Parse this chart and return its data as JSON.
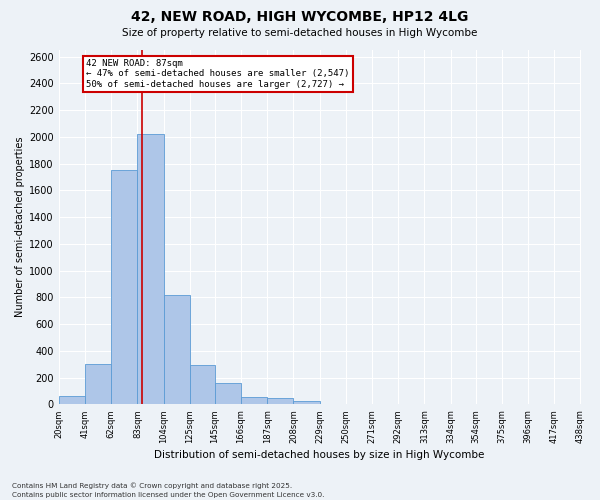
{
  "title": "42, NEW ROAD, HIGH WYCOMBE, HP12 4LG",
  "subtitle": "Size of property relative to semi-detached houses in High Wycombe",
  "xlabel": "Distribution of semi-detached houses by size in High Wycombe",
  "ylabel": "Number of semi-detached properties",
  "property_size": 87,
  "property_label": "42 NEW ROAD: 87sqm",
  "pct_smaller": 47,
  "count_smaller": 2547,
  "pct_larger": 50,
  "count_larger": 2727,
  "bin_edges": [
    20,
    41,
    62,
    83,
    104,
    125,
    145,
    166,
    187,
    208,
    229,
    250,
    271,
    292,
    313,
    334,
    354,
    375,
    396,
    417,
    438
  ],
  "bar_values": [
    60,
    300,
    1750,
    2020,
    815,
    295,
    160,
    55,
    45,
    25,
    0,
    0,
    0,
    0,
    0,
    0,
    0,
    0,
    0,
    0
  ],
  "bar_color": "#aec6e8",
  "bar_edge_color": "#5b9bd5",
  "line_color": "#cc0000",
  "annotation_box_color": "#cc0000",
  "background_color": "#edf2f7",
  "grid_color": "#ffffff",
  "ylim": [
    0,
    2650
  ],
  "yticks": [
    0,
    200,
    400,
    600,
    800,
    1000,
    1200,
    1400,
    1600,
    1800,
    2000,
    2200,
    2400,
    2600
  ],
  "footer_line1": "Contains HM Land Registry data © Crown copyright and database right 2025.",
  "footer_line2": "Contains public sector information licensed under the Open Government Licence v3.0."
}
